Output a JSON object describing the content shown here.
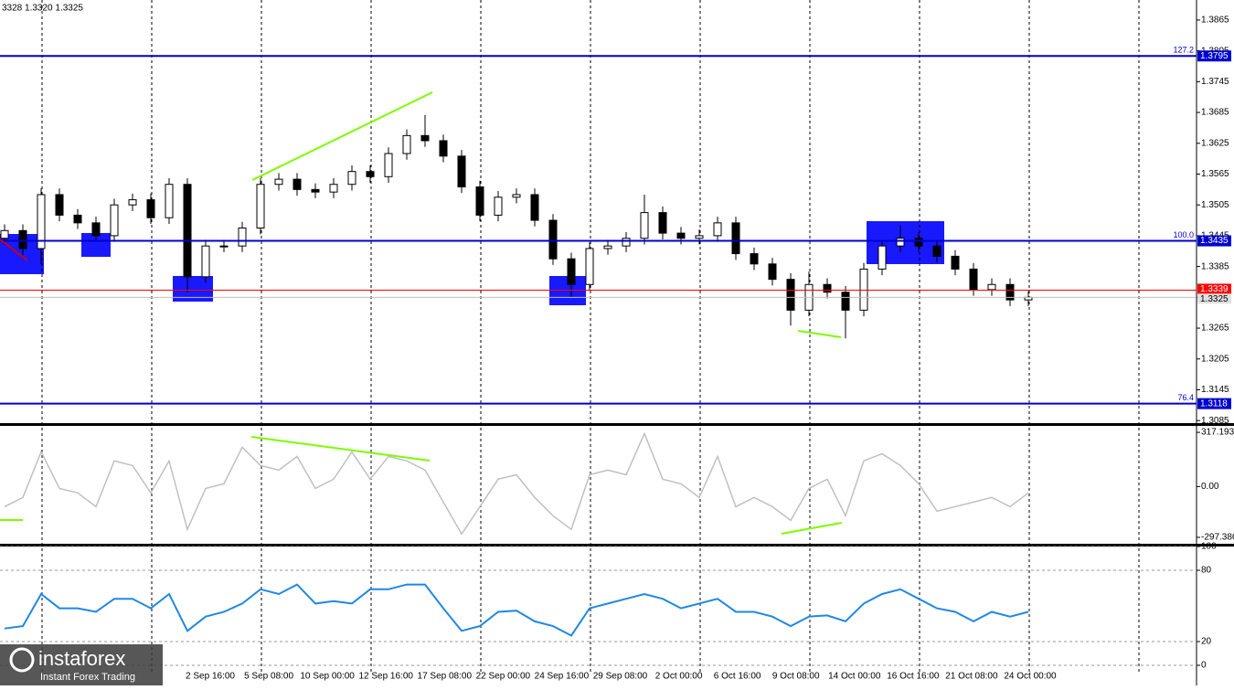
{
  "header": "3328 1.3320 1.3325",
  "watermark": {
    "brand": "instaforex",
    "tagline": "Instant Forex Trading"
  },
  "x_axis_labels": [
    "2 Sep 16:00",
    "5 Sep 08:00",
    "10 Sep 00:00",
    "12 Sep 16:00",
    "17 Sep 08:00",
    "22 Sep 00:00",
    "24 Sep 16:00",
    "29 Sep 08:00",
    "2 Oct 00:00",
    "6 Oct 16:00",
    "9 Oct 08:00",
    "14 Oct 00:00",
    "16 Oct 16:00",
    "21 Oct 08:00",
    "24 Oct 00:00"
  ],
  "chart_data": [
    {
      "type": "candlestick",
      "grid": false,
      "ylim": [
        1.308,
        1.3904
      ],
      "yticks": [
        1.3865,
        1.3805,
        1.3745,
        1.3685,
        1.3625,
        1.3565,
        1.3505,
        1.3445,
        1.3385,
        1.3325,
        1.3265,
        1.3205,
        1.3145,
        1.3085
      ],
      "open": [
        1.344,
        1.3455,
        1.342,
        1.3525,
        1.3485,
        1.347,
        1.3445,
        1.3505,
        1.3515,
        1.348,
        1.3545,
        1.3365,
        1.3425,
        1.3425,
        1.346,
        1.3545,
        1.3555,
        1.3535,
        1.353,
        1.3545,
        1.357,
        1.356,
        1.3605,
        1.364,
        1.363,
        1.36,
        1.354,
        1.3485,
        1.352,
        1.3525,
        1.3475,
        1.34,
        1.335,
        1.342,
        1.3425,
        1.344,
        1.349,
        1.345,
        1.344,
        1.3445,
        1.347,
        1.341,
        1.339,
        1.336,
        1.33,
        1.335,
        1.3335,
        1.33,
        1.338,
        1.3425,
        1.344,
        1.3425,
        1.3405,
        1.338,
        1.334,
        1.335,
        1.332
      ],
      "high": [
        1.3467,
        1.3467,
        1.3537,
        1.3537,
        1.3497,
        1.3482,
        1.3517,
        1.3527,
        1.3527,
        1.3557,
        1.3557,
        1.3437,
        1.3437,
        1.3472,
        1.3557,
        1.3567,
        1.3567,
        1.3547,
        1.3557,
        1.3582,
        1.3582,
        1.3617,
        1.3652,
        1.368,
        1.3642,
        1.3612,
        1.3552,
        1.3532,
        1.3537,
        1.3537,
        1.3487,
        1.3412,
        1.3432,
        1.3437,
        1.3452,
        1.3525,
        1.3502,
        1.3462,
        1.3457,
        1.3482,
        1.3482,
        1.3422,
        1.3402,
        1.3372,
        1.3375,
        1.3362,
        1.3347,
        1.3392,
        1.3437,
        1.3465,
        1.3452,
        1.3437,
        1.3417,
        1.3392,
        1.3362,
        1.3362,
        1.3337
      ],
      "low": [
        1.3428,
        1.3408,
        1.339,
        1.3473,
        1.3458,
        1.3433,
        1.3433,
        1.3493,
        1.3468,
        1.3468,
        1.3335,
        1.3353,
        1.3413,
        1.3413,
        1.3448,
        1.3533,
        1.3523,
        1.3518,
        1.3518,
        1.3533,
        1.3548,
        1.3548,
        1.3593,
        1.3618,
        1.3588,
        1.3528,
        1.3473,
        1.3473,
        1.3508,
        1.3463,
        1.3388,
        1.3325,
        1.3338,
        1.3408,
        1.3413,
        1.3428,
        1.3438,
        1.3428,
        1.3428,
        1.3433,
        1.3398,
        1.3378,
        1.3348,
        1.327,
        1.3288,
        1.3323,
        1.3245,
        1.3288,
        1.3368,
        1.3413,
        1.3413,
        1.3393,
        1.3368,
        1.3328,
        1.3328,
        1.3308,
        1.3308
      ],
      "close": [
        1.3455,
        1.342,
        1.3525,
        1.3485,
        1.347,
        1.3445,
        1.3505,
        1.3515,
        1.348,
        1.3545,
        1.3365,
        1.3425,
        1.3425,
        1.346,
        1.3545,
        1.3555,
        1.3535,
        1.353,
        1.3545,
        1.357,
        1.356,
        1.3605,
        1.364,
        1.363,
        1.36,
        1.354,
        1.3485,
        1.352,
        1.3525,
        1.3475,
        1.34,
        1.335,
        1.342,
        1.3425,
        1.344,
        1.349,
        1.345,
        1.344,
        1.3445,
        1.347,
        1.341,
        1.339,
        1.336,
        1.33,
        1.335,
        1.3335,
        1.33,
        1.338,
        1.3425,
        1.344,
        1.3425,
        1.3405,
        1.338,
        1.334,
        1.335,
        1.332,
        1.3325
      ],
      "levels": [
        {
          "label": "127.2",
          "value": 1.3795,
          "color": "#0000cc"
        },
        {
          "label": "100.0",
          "value": 1.3435,
          "color": "#0000cc"
        },
        {
          "label": "76.4",
          "value": 1.3118,
          "color": "#0000cc"
        }
      ],
      "price_lines": [
        {
          "value": 1.3339,
          "color": "#ff0000"
        },
        {
          "value": 1.3325,
          "color": "#c0c0c0"
        }
      ]
    },
    {
      "type": "line",
      "color": "#c0c0c0",
      "grid": false,
      "ylim": [
        -335,
        355
      ],
      "yticks": [
        317.1939,
        {
          "value": 0,
          "label": "0.00"
        },
        -297.386
      ],
      "values": [
        -118,
        -64,
        203,
        -11,
        -37,
        -118,
        150,
        123,
        -37,
        150,
        -251,
        -11,
        16,
        230,
        123,
        96,
        176,
        -11,
        43,
        203,
        43,
        176,
        150,
        96,
        -91,
        -278,
        -118,
        43,
        69,
        -64,
        -171,
        -251,
        69,
        96,
        69,
        310,
        43,
        16,
        -64,
        176,
        -118,
        -64,
        -118,
        -198,
        -11,
        43,
        -171,
        150,
        192,
        123,
        16,
        -144,
        -118,
        -91,
        -64,
        -118,
        -37
      ]
    },
    {
      "type": "line",
      "color": "#1e88e5",
      "grid": true,
      "ylim": [
        -5.4,
        100
      ],
      "yticks": [
        100,
        80,
        20,
        0
      ],
      "values": [
        31,
        33,
        60,
        48,
        48,
        45,
        56,
        56,
        48,
        60,
        29,
        41,
        45,
        52,
        64,
        60,
        68,
        52,
        54,
        52,
        64,
        64,
        68,
        68,
        48,
        29,
        33,
        45,
        46,
        37,
        33,
        25,
        48,
        52,
        56,
        60,
        56,
        48,
        52,
        56,
        45,
        45,
        41,
        33,
        41,
        42,
        37,
        52,
        60,
        64,
        56,
        48,
        45,
        37,
        45,
        41,
        45
      ]
    }
  ]
}
